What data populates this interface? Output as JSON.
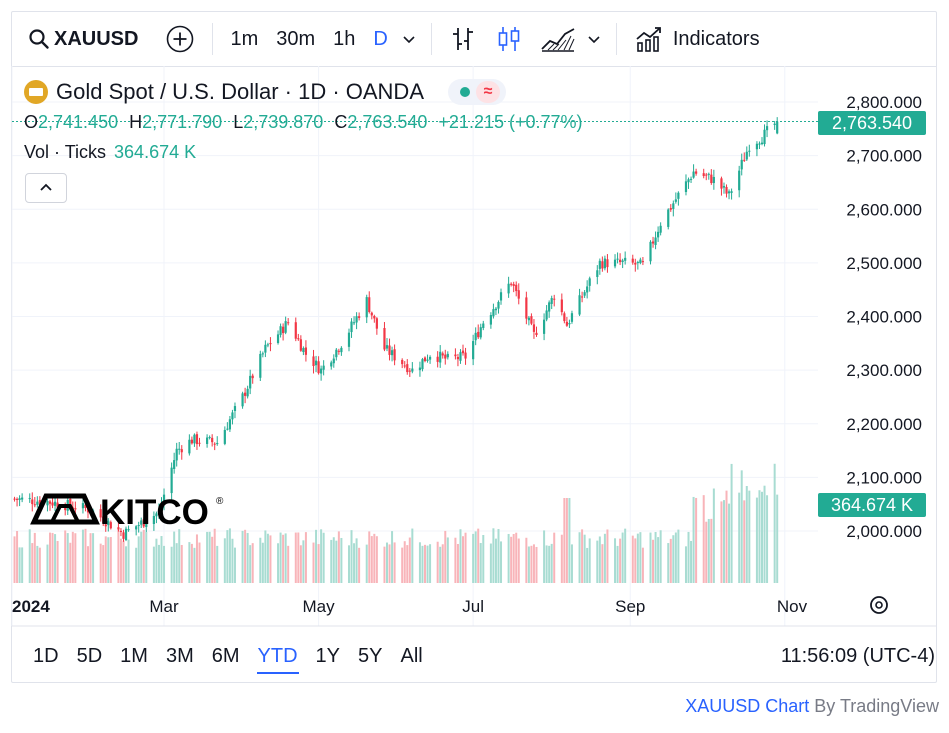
{
  "toolbar": {
    "symbol": "XAUUSD",
    "intervals": [
      "1m",
      "30m",
      "1h",
      "D"
    ],
    "active_interval": "D",
    "indicators_label": "Indicators"
  },
  "legend": {
    "title": "Gold Spot / U.S. Dollar · 1D · OANDA",
    "ohlc": {
      "o_label": "O",
      "o": "2,741.450",
      "h_label": "H",
      "h": "2,771.790",
      "l_label": "L",
      "l": "2,739.870",
      "c_label": "C",
      "c": "2,763.540",
      "change": "+21.215 (+0.77%)"
    },
    "vol_label": "Vol · Ticks",
    "vol_value": "364.674 K"
  },
  "watermark": "KITCO",
  "price_axis": {
    "ticks": [
      "2,800.000",
      "2,700.000",
      "2,600.000",
      "2,500.000",
      "2,400.000",
      "2,300.000",
      "2,200.000",
      "2,100.000",
      "2,000.000"
    ],
    "last_price_label": "2,763.540",
    "volume_label": "364.674 K"
  },
  "time_axis": {
    "labels": [
      "2024",
      "Mar",
      "May",
      "Jul",
      "Sep",
      "Nov"
    ]
  },
  "bottom_bar": {
    "ranges": [
      "1D",
      "5D",
      "1M",
      "3M",
      "6M",
      "YTD",
      "1Y",
      "5Y",
      "All"
    ],
    "active_range": "YTD",
    "clock": "11:56:09 (UTC-4)"
  },
  "attribution": {
    "link": "XAUUSD Chart",
    "by": "By TradingView"
  },
  "colors": {
    "up": "#22ab94",
    "down": "#f23645",
    "accent": "#2962ff",
    "price_tag": "#22ab94"
  },
  "chart_data": {
    "type": "candlestick",
    "symbol": "XAUUSD",
    "interval": "1D",
    "ylim": [
      1950,
      2830
    ],
    "x_labels": [
      "2024",
      "Mar",
      "May",
      "Jul",
      "Sep",
      "Nov"
    ],
    "last_close": 2763.54,
    "anchors": [
      {
        "date": "2024-01-02",
        "close": 2060
      },
      {
        "date": "2024-01-15",
        "close": 2055
      },
      {
        "date": "2024-02-01",
        "close": 2040
      },
      {
        "date": "2024-02-14",
        "close": 1995
      },
      {
        "date": "2024-02-28",
        "close": 2035
      },
      {
        "date": "2024-03-06",
        "close": 2150
      },
      {
        "date": "2024-03-12",
        "close": 2170
      },
      {
        "date": "2024-03-22",
        "close": 2165
      },
      {
        "date": "2024-04-01",
        "close": 2250
      },
      {
        "date": "2024-04-10",
        "close": 2340
      },
      {
        "date": "2024-04-19",
        "close": 2390
      },
      {
        "date": "2024-04-26",
        "close": 2330
      },
      {
        "date": "2024-05-02",
        "close": 2300
      },
      {
        "date": "2024-05-10",
        "close": 2350
      },
      {
        "date": "2024-05-20",
        "close": 2430
      },
      {
        "date": "2024-05-27",
        "close": 2340
      },
      {
        "date": "2024-06-07",
        "close": 2300
      },
      {
        "date": "2024-06-14",
        "close": 2330
      },
      {
        "date": "2024-06-21",
        "close": 2320
      },
      {
        "date": "2024-06-28",
        "close": 2325
      },
      {
        "date": "2024-07-05",
        "close": 2390
      },
      {
        "date": "2024-07-16",
        "close": 2465
      },
      {
        "date": "2024-07-25",
        "close": 2365
      },
      {
        "date": "2024-08-02",
        "close": 2440
      },
      {
        "date": "2024-08-07",
        "close": 2385
      },
      {
        "date": "2024-08-20",
        "close": 2500
      },
      {
        "date": "2024-08-30",
        "close": 2500
      },
      {
        "date": "2024-09-06",
        "close": 2495
      },
      {
        "date": "2024-09-13",
        "close": 2575
      },
      {
        "date": "2024-09-26",
        "close": 2670
      },
      {
        "date": "2024-10-04",
        "close": 2655
      },
      {
        "date": "2024-10-10",
        "close": 2625
      },
      {
        "date": "2024-10-18",
        "close": 2720
      },
      {
        "date": "2024-10-23",
        "close": 2735
      },
      {
        "date": "2024-10-29",
        "close": 2763.54
      }
    ],
    "volume": {
      "last": "364.674 K"
    }
  }
}
